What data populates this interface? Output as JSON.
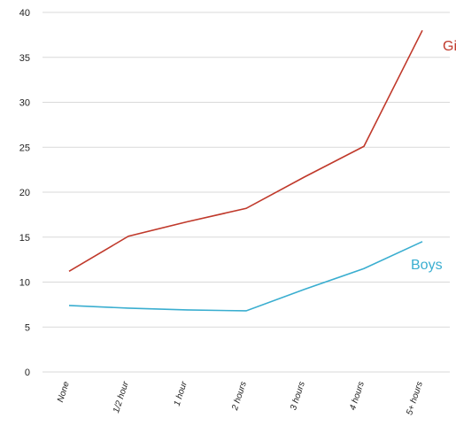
{
  "chart_data": {
    "type": "line",
    "categories": [
      "None",
      "1/2 hour",
      "1 hour",
      "2 hours",
      "3 hours",
      "4 hours",
      "5+ hours"
    ],
    "ylim": [
      0,
      40
    ],
    "yticks": [
      0,
      5,
      10,
      15,
      20,
      25,
      30,
      35,
      40
    ],
    "grid": true,
    "series": [
      {
        "name": "Girls",
        "color": "#c0392b",
        "values": [
          11.2,
          15.1,
          16.7,
          18.2,
          21.7,
          25.1,
          38.0
        ]
      },
      {
        "name": "Boys",
        "color": "#3aaed0",
        "values": [
          7.4,
          7.1,
          6.9,
          6.8,
          9.2,
          11.5,
          14.5
        ]
      }
    ]
  }
}
